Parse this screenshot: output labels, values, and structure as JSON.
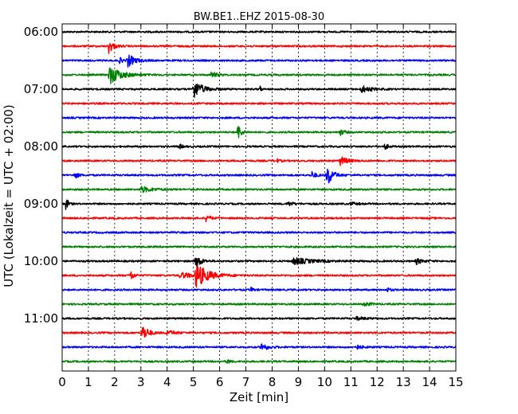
{
  "chart_data": {
    "type": "line",
    "title": "BW.BE1..EHZ 2015-08-30",
    "xlabel": "Zeit  [min]",
    "ylabel": "UTC (Lokalzeit = UTC + 02:00)",
    "xlim": [
      0,
      15
    ],
    "x_ticks": [
      "0",
      "1",
      "2",
      "3",
      "4",
      "5",
      "6",
      "7",
      "8",
      "9",
      "10",
      "11",
      "12",
      "13",
      "14",
      "15"
    ],
    "y_tick_labels": [
      "06:00",
      "07:00",
      "08:00",
      "09:00",
      "10:00",
      "11:00"
    ],
    "grid": true,
    "trace_colors": [
      "#000000",
      "#ff0000",
      "#0000ff",
      "#008000"
    ],
    "traces": [
      {
        "start": "06:00",
        "events": []
      },
      {
        "start": "06:15",
        "events": [
          [
            1.78,
            1.0,
            0.15
          ]
        ]
      },
      {
        "start": "06:30",
        "events": [
          [
            2.5,
            0.9,
            0.25
          ],
          [
            2.2,
            0.4,
            0.1
          ]
        ]
      },
      {
        "start": "06:45",
        "events": [
          [
            1.8,
            1.3,
            0.4
          ],
          [
            5.7,
            0.5,
            0.15
          ]
        ]
      },
      {
        "start": "07:00",
        "events": [
          [
            5.0,
            1.3,
            0.3
          ],
          [
            7.55,
            0.5,
            0.03
          ],
          [
            11.4,
            0.5,
            0.3
          ]
        ]
      },
      {
        "start": "07:15",
        "events": []
      },
      {
        "start": "07:30",
        "events": []
      },
      {
        "start": "07:45",
        "events": [
          [
            6.7,
            1.1,
            0.12
          ],
          [
            10.6,
            0.4,
            0.15
          ]
        ]
      },
      {
        "start": "08:00",
        "events": [
          [
            4.45,
            0.4,
            0.1
          ],
          [
            12.3,
            0.4,
            0.1
          ]
        ]
      },
      {
        "start": "08:15",
        "events": [
          [
            10.6,
            0.6,
            0.25
          ],
          [
            8.2,
            0.2,
            0.1
          ]
        ]
      },
      {
        "start": "08:30",
        "events": [
          [
            10.1,
            1.6,
            0.18
          ],
          [
            9.5,
            0.5,
            0.15
          ],
          [
            0.5,
            0.5,
            0.1
          ]
        ]
      },
      {
        "start": "08:45",
        "events": [
          [
            3.0,
            0.4,
            0.4
          ]
        ]
      },
      {
        "start": "09:00",
        "events": [
          [
            0.15,
            0.9,
            0.08
          ],
          [
            8.6,
            0.3,
            0.2
          ],
          [
            11.0,
            0.2,
            0.2
          ]
        ]
      },
      {
        "start": "09:15",
        "events": [
          [
            5.5,
            0.6,
            0.12
          ]
        ]
      },
      {
        "start": "09:30",
        "events": []
      },
      {
        "start": "09:45",
        "events": []
      },
      {
        "start": "10:00",
        "events": [
          [
            5.1,
            1.2,
            0.15
          ],
          [
            8.8,
            0.5,
            0.6
          ],
          [
            13.5,
            0.4,
            0.2
          ]
        ]
      },
      {
        "start": "10:15",
        "events": [
          [
            5.1,
            1.7,
            0.4
          ],
          [
            2.6,
            0.8,
            0.1
          ],
          [
            4.5,
            0.4,
            0.5
          ]
        ]
      },
      {
        "start": "10:30",
        "events": [
          [
            7.2,
            0.3,
            0.1
          ],
          [
            12.4,
            0.3,
            0.1
          ]
        ]
      },
      {
        "start": "10:45",
        "events": [
          [
            11.5,
            0.3,
            0.2
          ]
        ]
      },
      {
        "start": "11:00",
        "events": [
          [
            11.2,
            0.2,
            0.3
          ]
        ]
      },
      {
        "start": "11:15",
        "events": [
          [
            3.05,
            1.2,
            0.2
          ],
          [
            4.0,
            0.3,
            0.3
          ]
        ]
      },
      {
        "start": "11:30",
        "events": [
          [
            7.6,
            0.6,
            0.2
          ],
          [
            11.2,
            0.3,
            0.2
          ]
        ]
      },
      {
        "start": "11:45",
        "events": [
          [
            6.3,
            0.3,
            0.1
          ]
        ]
      }
    ]
  }
}
